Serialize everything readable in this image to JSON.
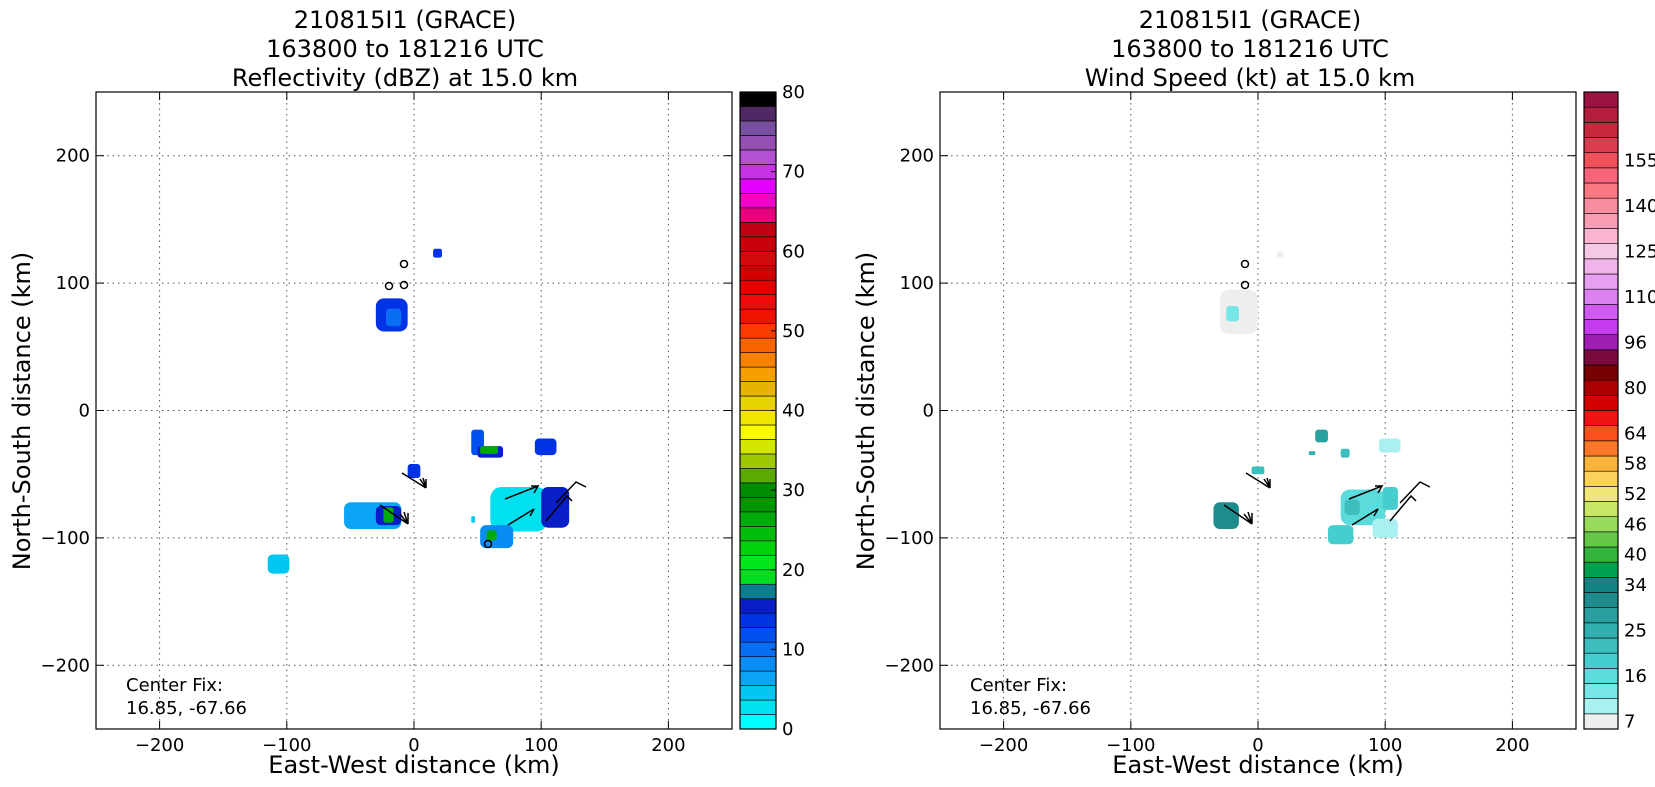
{
  "figure": {
    "center_fix_label": "Center Fix:",
    "center_fix_value": "16.85, -67.66"
  },
  "chart_data": [
    {
      "type": "heatmap",
      "title_lines": [
        "210815I1 (GRACE)",
        "163800 to 181216 UTC",
        "Reflectivity (dBZ) at 15.0 km"
      ],
      "xlabel": "East-West distance (km)",
      "ylabel": "North-South distance (km)",
      "xlim": [
        -250,
        250
      ],
      "ylim": [
        -250,
        250
      ],
      "xticks": [
        -200,
        -100,
        0,
        100,
        200
      ],
      "yticks": [
        -200,
        -100,
        0,
        100,
        200
      ],
      "grid": true,
      "colorbar": {
        "min": 0,
        "max": 80,
        "tick_values": [
          0,
          10,
          20,
          30,
          40,
          50,
          60,
          70,
          80
        ],
        "colors": [
          "#00ffff",
          "#00e1f0",
          "#00c6f2",
          "#0aa6f5",
          "#0a8cf5",
          "#0a6ef5",
          "#0050f0",
          "#0032e6",
          "#0a1ec8",
          "#0a7e8c",
          "#00dc1e",
          "#00e61e",
          "#00d20a",
          "#00be0a",
          "#00aa0a",
          "#009600",
          "#008c00",
          "#5aaa00",
          "#a0c800",
          "#d2e600",
          "#fafa00",
          "#f0e600",
          "#e6d200",
          "#e6b400",
          "#f5a000",
          "#f58200",
          "#fa6400",
          "#fa3c00",
          "#f01400",
          "#f00a0a",
          "#e10000",
          "#d20000",
          "#d20a0a",
          "#c8000a",
          "#bf0014",
          "#e6007d",
          "#f000c8",
          "#e100ff",
          "#c832e6",
          "#b450d2",
          "#9650b4",
          "#7850a0",
          "#502864",
          "#000000"
        ]
      },
      "regions": [
        {
          "x": [
            -30,
            -5
          ],
          "y": [
            62,
            88
          ],
          "level": 7
        },
        {
          "x": [
            -22,
            -10
          ],
          "y": [
            66,
            80
          ],
          "level": 5
        },
        {
          "x": [
            15,
            22
          ],
          "y": [
            120,
            127
          ],
          "level": 7
        },
        {
          "x": [
            -5,
            5
          ],
          "y": [
            -53,
            -42
          ],
          "level": 7
        },
        {
          "x": [
            45,
            55
          ],
          "y": [
            -35,
            -15
          ],
          "level": 6
        },
        {
          "x": [
            50,
            70
          ],
          "y": [
            -37,
            -28
          ],
          "level": 8
        },
        {
          "x": [
            52,
            66
          ],
          "y": [
            -34,
            -28
          ],
          "level": 14
        },
        {
          "x": [
            95,
            112
          ],
          "y": [
            -35,
            -22
          ],
          "level": 7
        },
        {
          "x": [
            -55,
            -10
          ],
          "y": [
            -93,
            -72
          ],
          "level": 3
        },
        {
          "x": [
            -30,
            -10
          ],
          "y": [
            -90,
            -75
          ],
          "level": 8
        },
        {
          "x": [
            -24,
            -16
          ],
          "y": [
            -88,
            -76
          ],
          "level": 14
        },
        {
          "x": [
            60,
            105
          ],
          "y": [
            -95,
            -60
          ],
          "level": 1
        },
        {
          "x": [
            100,
            122
          ],
          "y": [
            -92,
            -60
          ],
          "level": 8
        },
        {
          "x": [
            52,
            78
          ],
          "y": [
            -108,
            -90
          ],
          "level": 4
        },
        {
          "x": [
            57,
            65
          ],
          "y": [
            -102,
            -94
          ],
          "level": 14
        },
        {
          "x": [
            -115,
            -98
          ],
          "y": [
            -128,
            -113
          ],
          "level": 2
        },
        {
          "x": [
            45,
            48
          ],
          "y": [
            -88,
            -83
          ],
          "level": 2
        }
      ]
    },
    {
      "type": "heatmap",
      "title_lines": [
        "210815I1 (GRACE)",
        "163800 to 181216 UTC",
        "Wind Speed (kt) at 15.0 km"
      ],
      "xlabel": "East-West distance (km)",
      "ylabel": "North-South distance (km)",
      "xlim": [
        -250,
        250
      ],
      "ylim": [
        -250,
        250
      ],
      "xticks": [
        -200,
        -100,
        0,
        100,
        200
      ],
      "yticks": [
        -200,
        -100,
        0,
        100,
        200
      ],
      "grid": true,
      "colorbar": {
        "tick_labels": [
          "7",
          "16",
          "25",
          "34",
          "40",
          "46",
          "52",
          "58",
          "64",
          "80",
          "96",
          "110",
          "125",
          "140",
          "155"
        ],
        "tick_bins": [
          0,
          3,
          6,
          9,
          11,
          13,
          15,
          17,
          19,
          22,
          25,
          28,
          31,
          34,
          37
        ],
        "colors": [
          "#eeeeee",
          "#aaf0f0",
          "#78e6e6",
          "#5adcdc",
          "#46cdcd",
          "#3cbebe",
          "#32afaf",
          "#28a0a0",
          "#1e8c8c",
          "#128282",
          "#00a050",
          "#32b43c",
          "#64c846",
          "#96dc5a",
          "#c8e664",
          "#f0e678",
          "#fad25a",
          "#fab43c",
          "#fa7828",
          "#fa501e",
          "#f01414",
          "#d20000",
          "#aa0000",
          "#780000",
          "#780a3c",
          "#a01eb4",
          "#c83cf0",
          "#d25af0",
          "#dc82f0",
          "#e6a0f0",
          "#f0b4eb",
          "#f5c8e6",
          "#fab4d2",
          "#fa9cb4",
          "#fa8ca0",
          "#fa7882",
          "#f56478",
          "#f0505a",
          "#dc3c50",
          "#c8283c",
          "#b41e3c",
          "#9b1441"
        ]
      },
      "regions": [
        {
          "x": [
            -30,
            0
          ],
          "y": [
            60,
            95
          ],
          "level": 0
        },
        {
          "x": [
            -25,
            -15
          ],
          "y": [
            70,
            82
          ],
          "level": 2
        },
        {
          "x": [
            15,
            20
          ],
          "y": [
            120,
            125
          ],
          "level": 0
        },
        {
          "x": [
            -5,
            5
          ],
          "y": [
            -50,
            -44
          ],
          "level": 5
        },
        {
          "x": [
            45,
            55
          ],
          "y": [
            -25,
            -15
          ],
          "level": 7
        },
        {
          "x": [
            40,
            45
          ],
          "y": [
            -35,
            -32
          ],
          "level": 6
        },
        {
          "x": [
            65,
            72
          ],
          "y": [
            -37,
            -30
          ],
          "level": 5
        },
        {
          "x": [
            95,
            112
          ],
          "y": [
            -33,
            -22
          ],
          "level": 1
        },
        {
          "x": [
            -35,
            -15
          ],
          "y": [
            -93,
            -72
          ],
          "level": 8
        },
        {
          "x": [
            65,
            100
          ],
          "y": [
            -90,
            -62
          ],
          "level": 3
        },
        {
          "x": [
            68,
            80
          ],
          "y": [
            -82,
            -70
          ],
          "level": 5
        },
        {
          "x": [
            98,
            110
          ],
          "y": [
            -78,
            -60
          ],
          "level": 4
        },
        {
          "x": [
            55,
            75
          ],
          "y": [
            -105,
            -90
          ],
          "level": 4
        },
        {
          "x": [
            90,
            110
          ],
          "y": [
            -100,
            -85
          ],
          "level": 1
        }
      ]
    }
  ]
}
